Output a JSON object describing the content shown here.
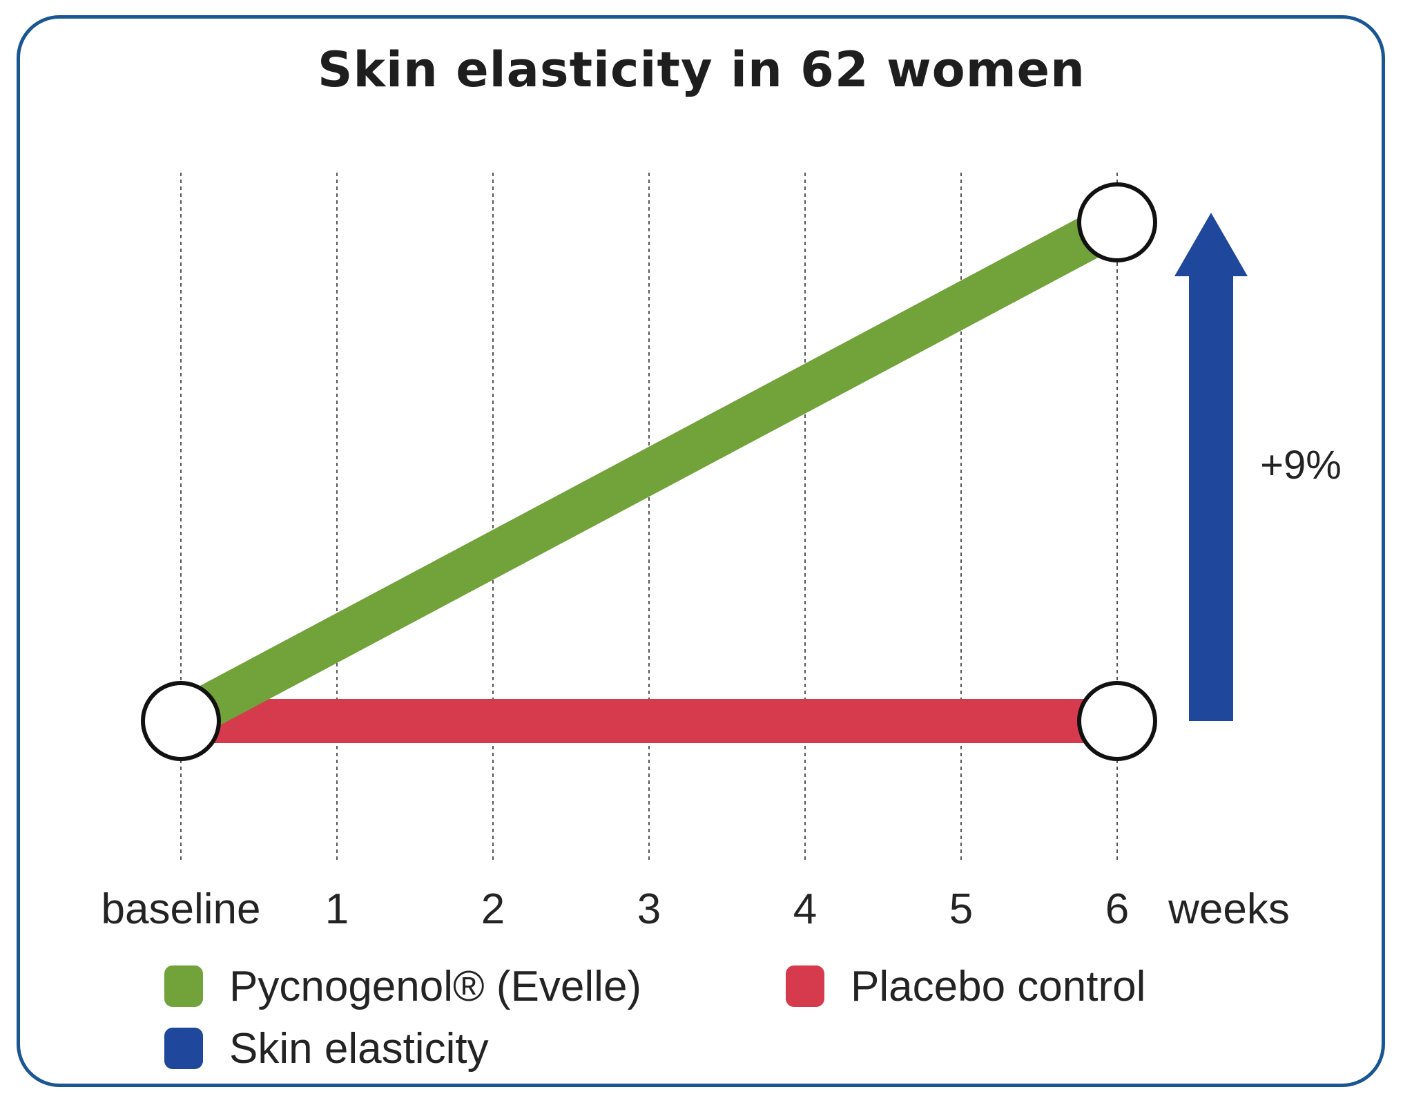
{
  "chart_data": {
    "type": "line",
    "title": "Skin elasticity in 62 women",
    "categories": [
      "baseline",
      "1",
      "2",
      "3",
      "4",
      "5",
      "6"
    ],
    "x": [
      0,
      6
    ],
    "xlabel": "weeks",
    "ylabel": "",
    "ylim": [
      0,
      9
    ],
    "grid": true,
    "gridlines": "vertical-dotted",
    "series": [
      {
        "name": "Pycnogenol® (Evelle)",
        "color": "#72a23a",
        "x": [
          0,
          6
        ],
        "values": [
          0,
          9
        ]
      },
      {
        "name": "Placebo control",
        "color": "#d63a4d",
        "x": [
          0,
          6
        ],
        "values": [
          0,
          0
        ]
      }
    ],
    "annotations": [
      {
        "type": "arrow",
        "direction": "up",
        "color": "#1f479b",
        "label": "+9%",
        "from": 0,
        "to": 9
      }
    ],
    "legend": {
      "placement": "bottom",
      "items": [
        {
          "label": "Pycnogenol® (Evelle)",
          "color": "#72a23a"
        },
        {
          "label": "Placebo control",
          "color": "#d63a4d"
        },
        {
          "label": "Skin elasticity",
          "color": "#1f479b"
        }
      ]
    }
  },
  "colors": {
    "frame": "#1a5594",
    "marker_fill": "#ffffff",
    "marker_stroke": "#111111"
  }
}
